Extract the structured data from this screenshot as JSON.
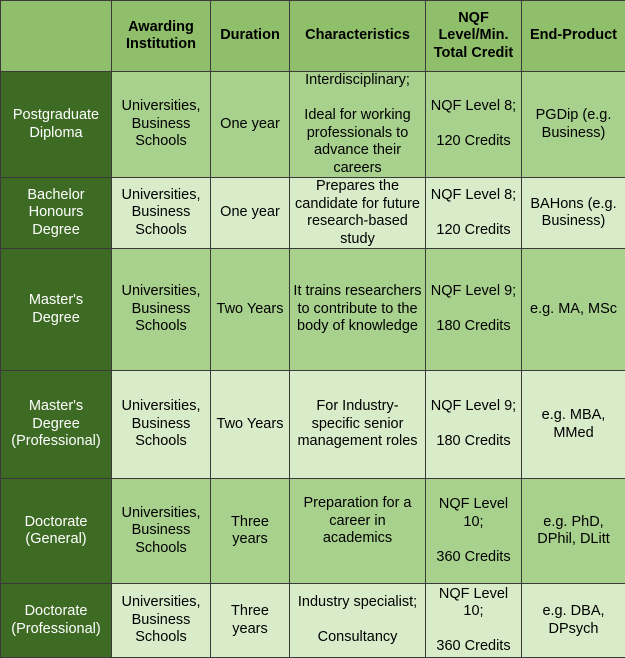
{
  "headers": [
    "",
    "Awarding Institution",
    "Duration",
    "Characteristics",
    "NQF Level/Min. Total Credit",
    "End-Product"
  ],
  "rows": [
    {
      "qualification": "Postgraduate Diploma",
      "institution": "Universities, Business Schools",
      "duration": "One year",
      "characteristics_1": "Interdisciplinary;",
      "characteristics_2": "Ideal for working professionals to advance their careers",
      "nqf_level": "NQF Level 8;",
      "credits": "120 Credits",
      "end_product": "PGDip (e.g. Business)"
    },
    {
      "qualification": "Bachelor Honours Degree",
      "institution": "Universities, Business Schools",
      "duration": "One year",
      "characteristics_1": "Prepares the candidate for future research-based study",
      "characteristics_2": "",
      "nqf_level": "NQF Level 8;",
      "credits": "120 Credits",
      "end_product": "BAHons (e.g. Business)"
    },
    {
      "qualification": "Master's Degree",
      "institution": "Universities, Business Schools",
      "duration": "Two Years",
      "characteristics_1": "It trains researchers to contribute to the body of knowledge",
      "characteristics_2": "",
      "nqf_level": "NQF Level 9;",
      "credits": "180 Credits",
      "end_product": "e.g. MA, MSc"
    },
    {
      "qualification": "Master's Degree (Professional)",
      "institution": "Universities, Business Schools",
      "duration": "Two Years",
      "characteristics_1": "For Industry-specific senior management roles",
      "characteristics_2": "",
      "nqf_level": "NQF Level 9;",
      "credits": "180 Credits",
      "end_product": "e.g. MBA, MMed"
    },
    {
      "qualification": "Doctorate (General)",
      "institution": "Universities, Business Schools",
      "duration": "Three years",
      "characteristics_1": "Preparation for a career in academics",
      "characteristics_2": "",
      "nqf_level": "NQF Level 10;",
      "credits": "360 Credits",
      "end_product": "e.g. PhD, DPhil, DLitt"
    },
    {
      "qualification": "Doctorate (Professional)",
      "institution": "Universities, Business Schools",
      "duration": "Three years",
      "characteristics_1": "Industry specialist;",
      "characteristics_2": "Consultancy",
      "nqf_level": "NQF Level 10;",
      "credits": "360 Credits",
      "end_product": "e.g. DBA, DPsych"
    }
  ]
}
